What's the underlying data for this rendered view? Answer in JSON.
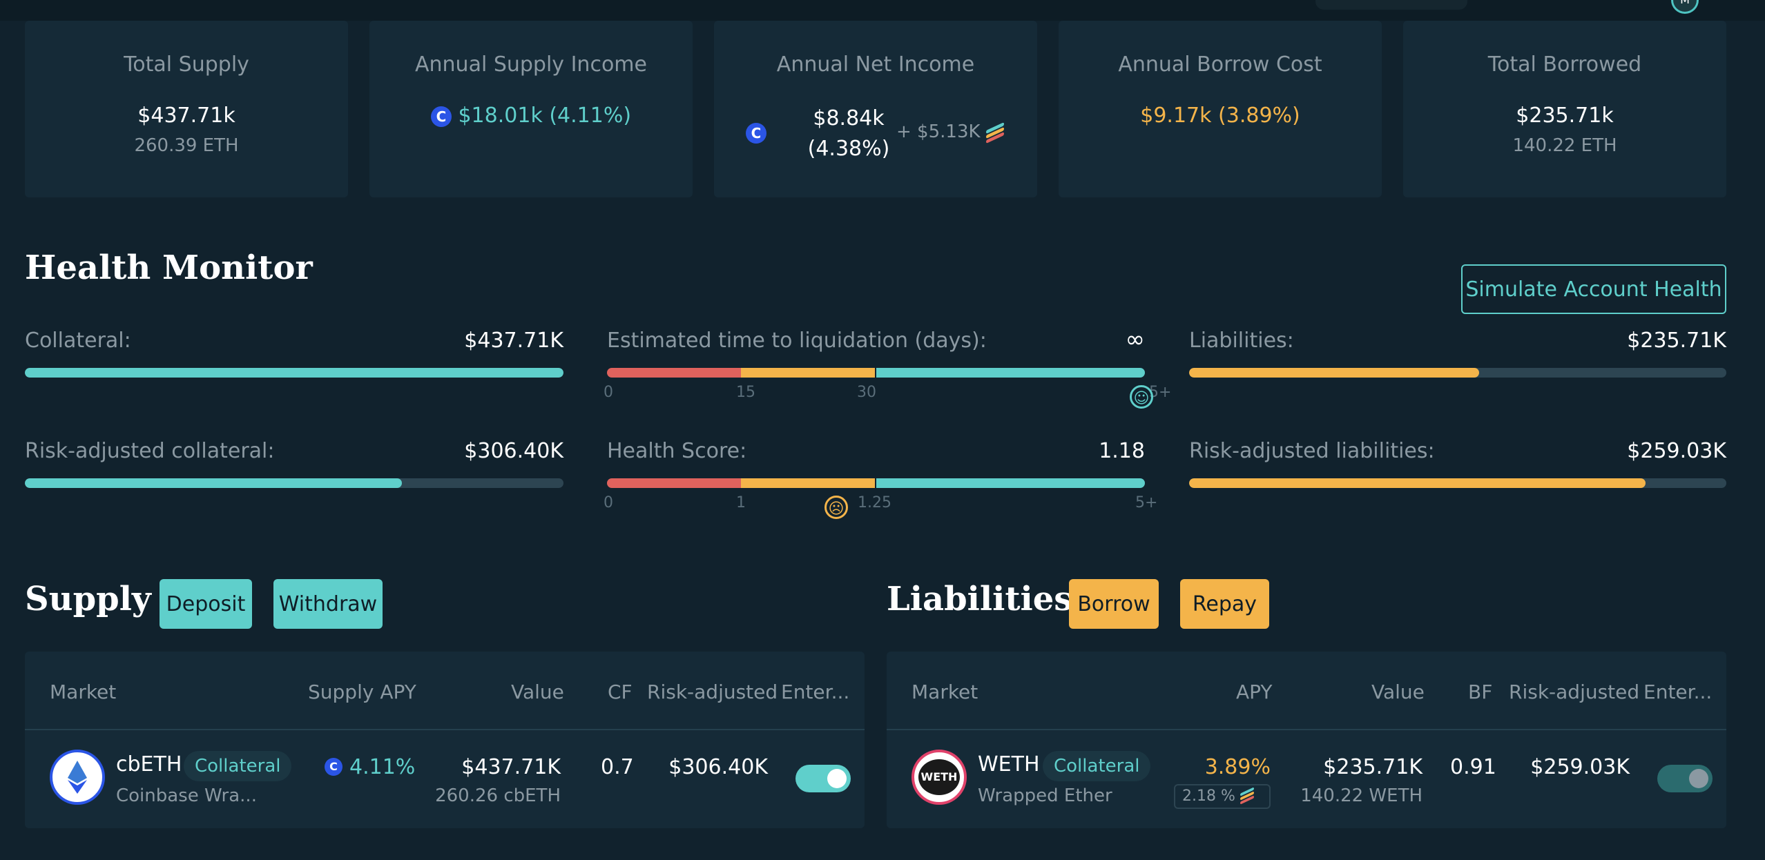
{
  "header": {
    "avatar_letter": "M"
  },
  "summary": {
    "total_supply": {
      "title": "Total Supply",
      "value": "$437.71k",
      "sub": "260.39 ETH"
    },
    "annual_supply_income": {
      "title": "Annual Supply Income",
      "value": "$18.01k (4.11%)",
      "icon": "comp-icon"
    },
    "annual_net_income": {
      "title": "Annual Net Income",
      "value_line1": "$8.84k",
      "value_line2": "(4.38%)",
      "reward": "+ $5.13K",
      "icon": "comp-icon"
    },
    "annual_borrow_cost": {
      "title": "Annual Borrow Cost",
      "value": "$9.17k (3.89%)"
    },
    "total_borrowed": {
      "title": "Total Borrowed",
      "value": "$235.71k",
      "sub": "140.22 ETH"
    }
  },
  "health_monitor": {
    "title": "Health Monitor",
    "simulate_button": "Simulate Account Health",
    "collateral": {
      "label": "Collateral:",
      "value": "$437.71K",
      "fill": 1.0
    },
    "risk_adjusted_collateral": {
      "label": "Risk-adjusted collateral:",
      "value": "$306.40K",
      "fill": 0.7
    },
    "time_to_liquidation": {
      "label": "Estimated time to liquidation (days):",
      "value": "∞",
      "ticks": [
        "0",
        "15",
        "30",
        "5+"
      ],
      "indicator": "happy-face"
    },
    "health_score": {
      "label": "Health Score:",
      "value": "1.18",
      "ticks": [
        "0",
        "1",
        "1.25",
        "5+"
      ],
      "indicator": "worried-face"
    },
    "liabilities": {
      "label": "Liabilities:",
      "value": "$235.71K",
      "fill": 0.54
    },
    "risk_adjusted_liabilities": {
      "label": "Risk-adjusted liabilities:",
      "value": "$259.03K",
      "fill": 0.85
    }
  },
  "supply": {
    "title": "Supply",
    "deposit_button": "Deposit",
    "withdraw_button": "Withdraw",
    "columns": [
      "Market",
      "Supply APY",
      "Value",
      "CF",
      "Risk-adjusted",
      "Enter..."
    ],
    "row": {
      "symbol": "cbETH",
      "tag": "Collateral",
      "name": "Coinbase Wra...",
      "apy": "4.11%",
      "value": "$437.71K",
      "value_sub": "260.26 cbETH",
      "cf": "0.7",
      "risk_adjusted": "$306.40K",
      "enabled": true
    }
  },
  "liabilities_section": {
    "title": "Liabilities",
    "borrow_button": "Borrow",
    "repay_button": "Repay",
    "columns": [
      "Market",
      "APY",
      "Value",
      "BF",
      "Risk-adjusted",
      "Enter..."
    ],
    "row": {
      "symbol": "WETH",
      "icon_text": "WETH",
      "tag": "Collateral",
      "name": "Wrapped Ether",
      "apy": "3.89%",
      "reward_apy": "2.18 %",
      "value": "$235.71K",
      "value_sub": "140.22 WETH",
      "bf": "0.91",
      "risk_adjusted": "$259.03K",
      "enabled": true
    }
  },
  "colors": {
    "teal": "#5fcfcb",
    "orange": "#f4b44a",
    "red": "#e0625d",
    "background": "#11222d",
    "card": "#152a37"
  }
}
